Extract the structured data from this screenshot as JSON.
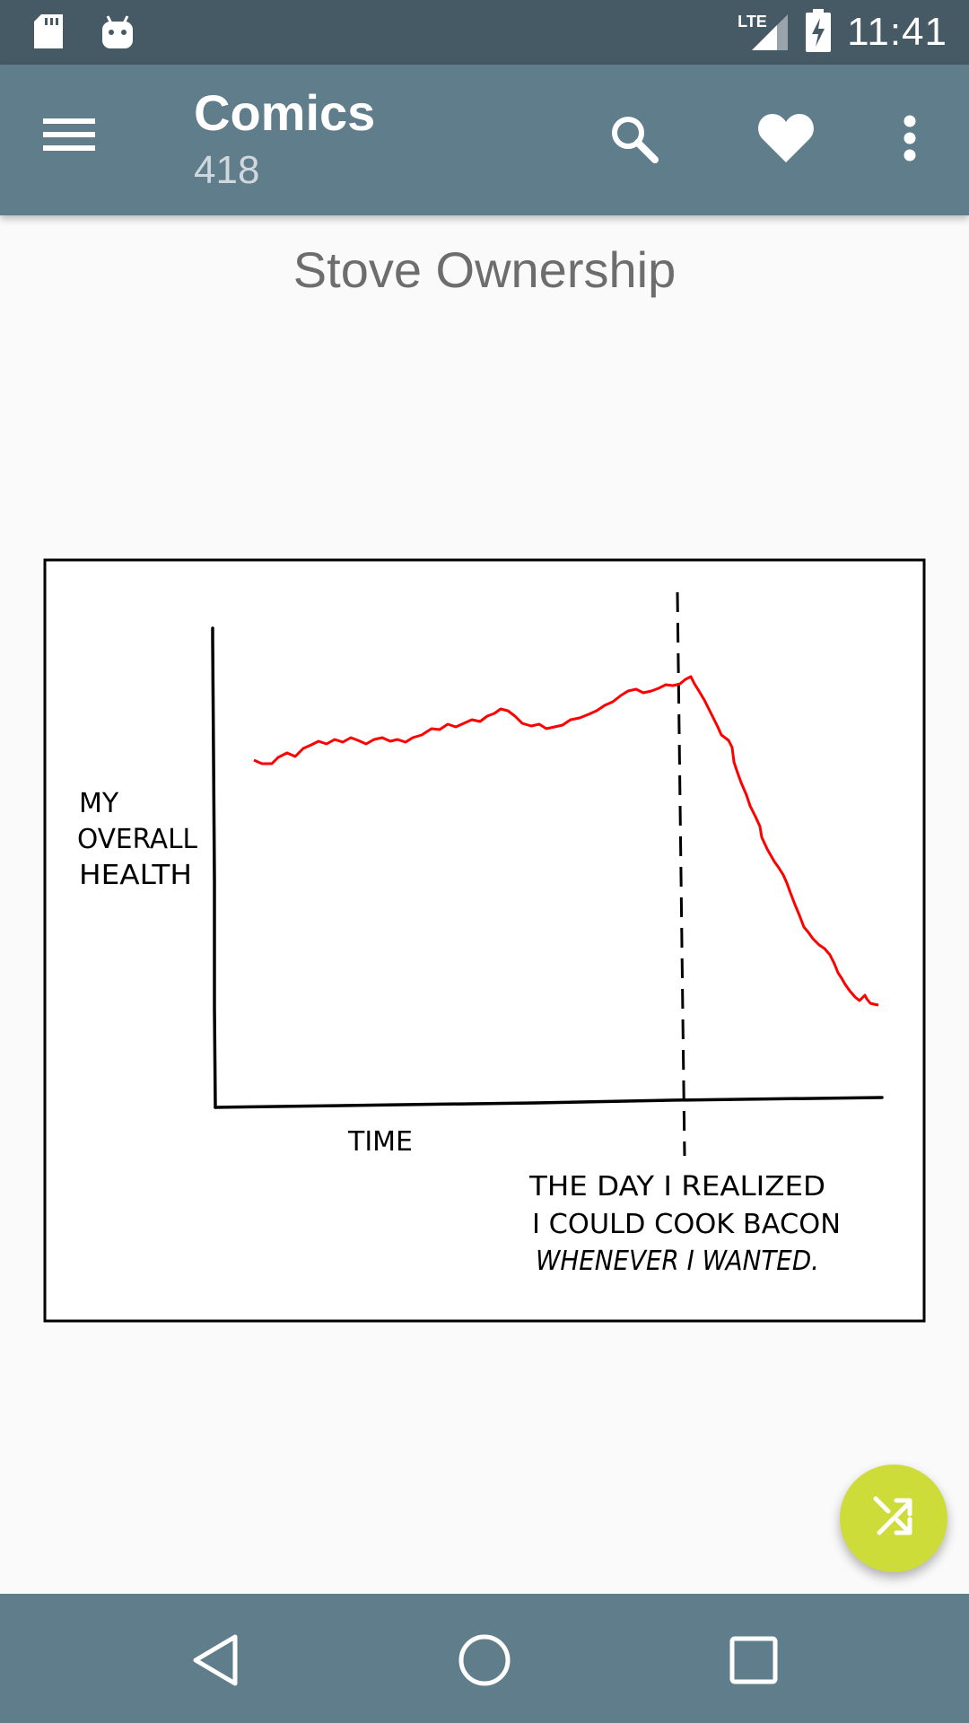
{
  "status_bar": {
    "time": "11:41",
    "network_label": "LTE",
    "icons": [
      "sd-card-icon",
      "android-icon",
      "lte-signal-icon",
      "battery-charging-icon"
    ]
  },
  "app_bar": {
    "title": "Comics",
    "subtitle": "418",
    "icons": [
      "menu-icon",
      "search-icon",
      "heart-icon",
      "more-vert-icon"
    ]
  },
  "comic": {
    "title": "Stove Ownership",
    "y_axis_label": [
      "MY",
      "OVERALL",
      "HEALTH"
    ],
    "x_axis_label": "TIME",
    "annotation": [
      "THE DAY I REALIZED",
      "I COULD COOK BACON",
      "WHENEVER I WANTED."
    ]
  },
  "fab": {
    "icon": "shuffle-icon"
  },
  "nav_bar": {
    "icons": [
      "back-icon",
      "home-icon",
      "recents-icon"
    ]
  },
  "colors": {
    "status_bar": "#455a64",
    "app_bar": "#607d8b",
    "fab": "#cddc39",
    "health_line": "#ff0000"
  }
}
